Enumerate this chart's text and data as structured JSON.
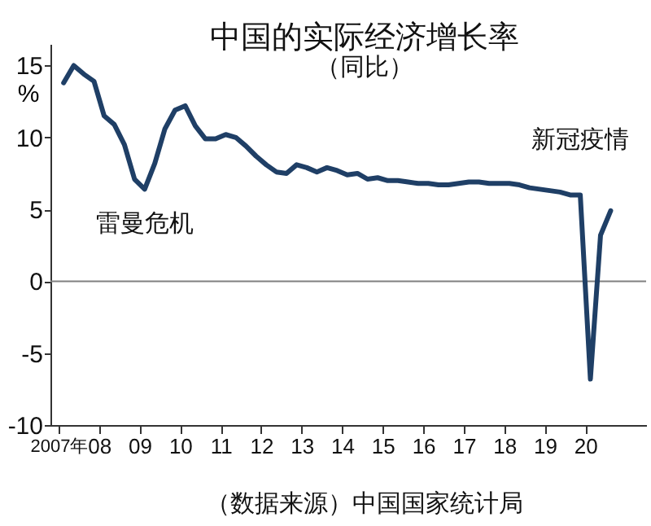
{
  "chart_data": {
    "type": "line",
    "title": "中国的实际经济增长率",
    "subtitle": "（同比）",
    "ylabel": "%",
    "x": [
      2007.125,
      2007.375,
      2007.625,
      2007.875,
      2008.125,
      2008.375,
      2008.625,
      2008.875,
      2009.125,
      2009.375,
      2009.625,
      2009.875,
      2010.125,
      2010.375,
      2010.625,
      2010.875,
      2011.125,
      2011.375,
      2011.625,
      2011.875,
      2012.125,
      2012.375,
      2012.625,
      2012.875,
      2013.125,
      2013.375,
      2013.625,
      2013.875,
      2014.125,
      2014.375,
      2014.625,
      2014.875,
      2015.125,
      2015.375,
      2015.625,
      2015.875,
      2016.125,
      2016.375,
      2016.625,
      2016.875,
      2017.125,
      2017.375,
      2017.625,
      2017.875,
      2018.125,
      2018.375,
      2018.625,
      2018.875,
      2019.125,
      2019.375,
      2019.625,
      2019.875,
      2020.125,
      2020.375,
      2020.625
    ],
    "series": [
      {
        "color": "#1f3f66",
        "values": [
          13.8,
          15.0,
          14.4,
          13.9,
          11.5,
          10.9,
          9.5,
          7.1,
          6.4,
          8.2,
          10.6,
          11.9,
          12.2,
          10.8,
          9.9,
          9.9,
          10.2,
          10.0,
          9.4,
          8.7,
          8.1,
          7.6,
          7.5,
          8.1,
          7.9,
          7.6,
          7.9,
          7.7,
          7.4,
          7.5,
          7.1,
          7.2,
          7.0,
          7.0,
          6.9,
          6.8,
          6.8,
          6.7,
          6.7,
          6.8,
          6.9,
          6.9,
          6.8,
          6.8,
          6.8,
          6.7,
          6.5,
          6.4,
          6.3,
          6.2,
          6.0,
          6.0,
          -6.8,
          3.2,
          4.9
        ]
      }
    ],
    "xlim": [
      2006.8,
      2021.5
    ],
    "xticks": [
      {
        "value": 2007,
        "label": "2007年"
      },
      {
        "value": 2008,
        "label": "08"
      },
      {
        "value": 2009,
        "label": "09"
      },
      {
        "value": 2010,
        "label": "10"
      },
      {
        "value": 2011,
        "label": "11"
      },
      {
        "value": 2012,
        "label": "12"
      },
      {
        "value": 2013,
        "label": "13"
      },
      {
        "value": 2014,
        "label": "14"
      },
      {
        "value": 2015,
        "label": "15"
      },
      {
        "value": 2016,
        "label": "16"
      },
      {
        "value": 2017,
        "label": "17"
      },
      {
        "value": 2018,
        "label": "18"
      },
      {
        "value": 2019,
        "label": "19"
      },
      {
        "value": 2020,
        "label": "20"
      }
    ],
    "ylim": [
      -10,
      16.5
    ],
    "yticks": [
      -10,
      -5,
      0,
      5,
      10,
      15
    ],
    "ref_lines": [
      {
        "axis": "y",
        "value": 0,
        "color": "#808080"
      }
    ],
    "annotations": [
      {
        "text": "雷曼危机",
        "x": 2009.125,
        "y": 6.4
      },
      {
        "text": "新冠疫情",
        "x": 2019.875,
        "y": 6.0
      },
      "（数据来源）中国国家统计局"
    ]
  }
}
